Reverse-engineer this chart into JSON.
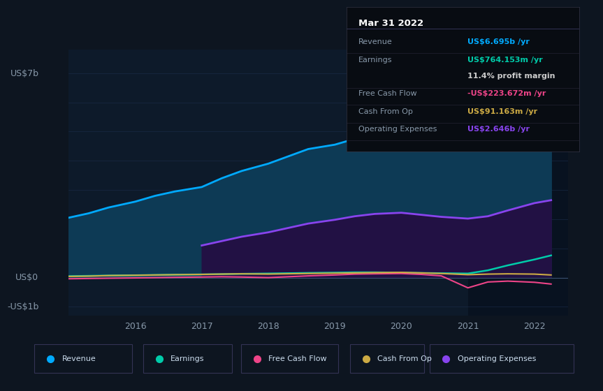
{
  "bg_color": "#0d1520",
  "plot_bg_color": "#0d1a2a",
  "grid_color": "#1e3050",
  "text_color": "#8899aa",
  "ylabel_top": "US$7b",
  "ylabel_zero": "US$0",
  "ylabel_neg": "-US$1b",
  "ylim": [
    -1.3,
    7.8
  ],
  "xlim_start": 2015.0,
  "xlim_end": 2022.5,
  "xticks": [
    2016,
    2017,
    2018,
    2019,
    2020,
    2021,
    2022
  ],
  "series_colors": {
    "revenue": "#00aaff",
    "revenue_fill": "#0d3a55",
    "earnings": "#00ccaa",
    "free_cash_flow": "#ee4488",
    "cash_from_op": "#ccaa44",
    "op_expenses": "#8844ee",
    "op_expenses_fill": "#221144"
  },
  "legend_items": [
    {
      "label": "Revenue",
      "color": "#00aaff"
    },
    {
      "label": "Earnings",
      "color": "#00ccaa"
    },
    {
      "label": "Free Cash Flow",
      "color": "#ee4488"
    },
    {
      "label": "Cash From Op",
      "color": "#ccaa44"
    },
    {
      "label": "Operating Expenses",
      "color": "#8844ee"
    }
  ],
  "infobox": {
    "date": "Mar 31 2022",
    "rows": [
      {
        "label": "Revenue",
        "value": "US$6.695b /yr",
        "color": "#00aaff"
      },
      {
        "label": "Earnings",
        "value": "US$764.153m /yr",
        "color": "#00ccaa"
      },
      {
        "label": "",
        "value": "11.4% profit margin",
        "color": "#cccccc"
      },
      {
        "label": "Free Cash Flow",
        "value": "-US$223.672m /yr",
        "color": "#ee4488"
      },
      {
        "label": "Cash From Op",
        "value": "US$91.163m /yr",
        "color": "#ccaa44"
      },
      {
        "label": "Operating Expenses",
        "value": "US$2.646b /yr",
        "color": "#8844ee"
      }
    ]
  },
  "revenue_x": [
    2015.0,
    2015.3,
    2015.6,
    2016.0,
    2016.3,
    2016.6,
    2017.0,
    2017.3,
    2017.6,
    2018.0,
    2018.3,
    2018.6,
    2019.0,
    2019.3,
    2019.6,
    2020.0,
    2020.3,
    2020.6,
    2021.0,
    2021.3,
    2021.6,
    2022.0,
    2022.25
  ],
  "revenue_y": [
    2.05,
    2.2,
    2.4,
    2.6,
    2.8,
    2.95,
    3.1,
    3.4,
    3.65,
    3.9,
    4.15,
    4.4,
    4.55,
    4.75,
    4.85,
    4.88,
    4.72,
    4.5,
    4.42,
    4.7,
    5.4,
    6.4,
    6.9
  ],
  "op_expenses_x": [
    2017.0,
    2017.3,
    2017.6,
    2018.0,
    2018.3,
    2018.6,
    2019.0,
    2019.3,
    2019.6,
    2020.0,
    2020.3,
    2020.6,
    2021.0,
    2021.3,
    2021.6,
    2022.0,
    2022.25
  ],
  "op_expenses_y": [
    1.1,
    1.25,
    1.4,
    1.55,
    1.7,
    1.85,
    1.98,
    2.1,
    2.18,
    2.22,
    2.15,
    2.08,
    2.02,
    2.1,
    2.3,
    2.55,
    2.65
  ],
  "earnings_x": [
    2015.0,
    2015.3,
    2015.6,
    2016.0,
    2016.3,
    2016.6,
    2017.0,
    2017.3,
    2017.6,
    2018.0,
    2018.3,
    2018.6,
    2019.0,
    2019.3,
    2019.6,
    2020.0,
    2020.3,
    2020.6,
    2021.0,
    2021.3,
    2021.6,
    2022.0,
    2022.25
  ],
  "earnings_y": [
    0.05,
    0.06,
    0.07,
    0.08,
    0.09,
    0.1,
    0.11,
    0.12,
    0.13,
    0.14,
    0.15,
    0.16,
    0.17,
    0.18,
    0.18,
    0.17,
    0.16,
    0.15,
    0.14,
    0.25,
    0.42,
    0.62,
    0.76
  ],
  "fcf_x": [
    2015.0,
    2015.3,
    2015.6,
    2016.0,
    2016.3,
    2016.6,
    2017.0,
    2017.3,
    2017.6,
    2018.0,
    2018.3,
    2018.6,
    2019.0,
    2019.3,
    2019.6,
    2020.0,
    2020.3,
    2020.6,
    2021.0,
    2021.3,
    2021.6,
    2022.0,
    2022.25
  ],
  "fcf_y": [
    -0.04,
    -0.03,
    -0.02,
    -0.01,
    0.0,
    0.01,
    0.02,
    0.03,
    0.02,
    0.0,
    0.03,
    0.06,
    0.09,
    0.12,
    0.13,
    0.14,
    0.11,
    0.06,
    -0.35,
    -0.15,
    -0.12,
    -0.16,
    -0.22
  ],
  "cash_op_x": [
    2015.0,
    2015.3,
    2015.6,
    2016.0,
    2016.3,
    2016.6,
    2017.0,
    2017.3,
    2017.6,
    2018.0,
    2018.3,
    2018.6,
    2019.0,
    2019.3,
    2019.6,
    2020.0,
    2020.3,
    2020.6,
    2021.0,
    2021.3,
    2021.6,
    2022.0,
    2022.25
  ],
  "cash_op_y": [
    0.04,
    0.05,
    0.07,
    0.08,
    0.09,
    0.1,
    0.11,
    0.12,
    0.13,
    0.12,
    0.13,
    0.14,
    0.15,
    0.16,
    0.17,
    0.18,
    0.16,
    0.14,
    0.1,
    0.12,
    0.13,
    0.12,
    0.09
  ]
}
